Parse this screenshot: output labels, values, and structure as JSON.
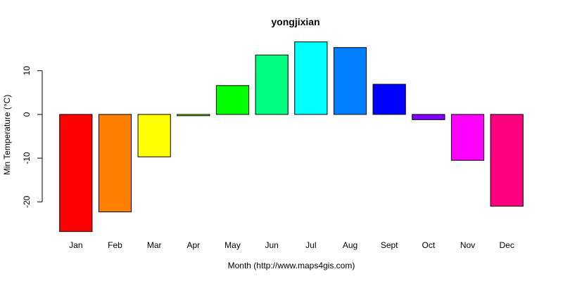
{
  "chart_data": {
    "type": "bar",
    "title": "yongjixian",
    "xlabel": "Month (http://www.maps4gis.com)",
    "ylabel": "Min Temperature (°C)",
    "categories": [
      "Jan",
      "Feb",
      "Mar",
      "Apr",
      "May",
      "Jun",
      "Jul",
      "Aug",
      "Sept",
      "Oct",
      "Nov",
      "Dec"
    ],
    "values": [
      -26.8,
      -22.3,
      -9.7,
      -0.3,
      6.6,
      13.6,
      16.6,
      15.3,
      6.9,
      -1.2,
      -10.5,
      -21.0
    ],
    "colors": [
      "#FF0000",
      "#FF8000",
      "#FFFF00",
      "#80FF00",
      "#00FF00",
      "#00FF80",
      "#00FFFF",
      "#0080FF",
      "#0000FF",
      "#8000FF",
      "#FF00FF",
      "#FF0080"
    ],
    "yticks": [
      -20,
      -10,
      0,
      10
    ],
    "ylim": [
      -27.5,
      17.5
    ],
    "grid": false,
    "legend": "none"
  }
}
